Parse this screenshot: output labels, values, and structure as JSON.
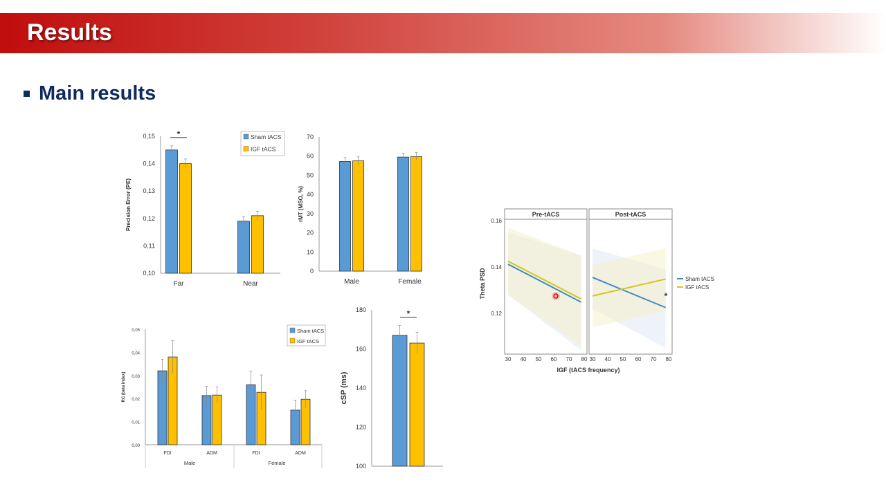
{
  "slide": {
    "title": "Results",
    "subtitle": "Main results"
  },
  "colors": {
    "sham": "#5b9bd5",
    "igf": "#ffc000",
    "sham_line": "#3d8ac4",
    "igf_line": "#d4c41a"
  },
  "chart_data": [
    {
      "type": "bar",
      "id": "pe",
      "ylabel": "Precision Error (PE)",
      "categories": [
        "Far",
        "Near"
      ],
      "ylim": [
        0.1,
        0.15
      ],
      "yticks": [
        "0,10",
        "0,11",
        "0,12",
        "0,13",
        "0,14",
        "0,15"
      ],
      "series": [
        {
          "name": "Sham tACS",
          "values": [
            0.145,
            0.119
          ],
          "errors": [
            0.0015,
            0.0017
          ]
        },
        {
          "name": "IGF tACS",
          "values": [
            0.14,
            0.121
          ],
          "errors": [
            0.0017,
            0.0016
          ]
        }
      ],
      "legend": "top-right",
      "annotations": [
        {
          "text": "*",
          "category": "Far"
        }
      ]
    },
    {
      "type": "bar",
      "id": "rmt",
      "ylabel": "rMT (MSO, %)",
      "categories": [
        "Male",
        "Female"
      ],
      "ylim": [
        0,
        70
      ],
      "yticks": [
        "0",
        "10",
        "20",
        "30",
        "40",
        "50",
        "60",
        "70"
      ],
      "series": [
        {
          "name": "Sham tACS",
          "values": [
            57.2,
            59.5
          ],
          "errors": [
            2,
            2
          ]
        },
        {
          "name": "IGF tACS",
          "values": [
            57.6,
            59.8
          ],
          "errors": [
            2,
            2
          ]
        }
      ]
    },
    {
      "type": "bar",
      "id": "rc",
      "ylabel": "RC (beta index)",
      "categories": [
        "FDI",
        "ADM",
        "FDI",
        "ADM"
      ],
      "groups": [
        "Male",
        "Female"
      ],
      "ylim": [
        0,
        0.05
      ],
      "yticks": [
        "0,00",
        "0,01",
        "0,02",
        "0,03",
        "0,04",
        "0,05"
      ],
      "series": [
        {
          "name": "Sham tACS",
          "values": [
            0.032,
            0.0213,
            0.026,
            0.015
          ],
          "errors": [
            0.005,
            0.004,
            0.0058,
            0.0043
          ]
        },
        {
          "name": "IGF tACS",
          "values": [
            0.038,
            0.0215,
            0.0227,
            0.0197
          ],
          "errors": [
            0.007,
            0.0035,
            0.0075,
            0.0037
          ]
        }
      ],
      "legend": "top-right"
    },
    {
      "type": "bar",
      "id": "csp",
      "ylabel": "cSP (ms)",
      "categories": [
        ""
      ],
      "ylim": [
        100,
        180
      ],
      "yticks": [
        "100",
        "120",
        "140",
        "160",
        "180"
      ],
      "series": [
        {
          "name": "Sham tACS",
          "values": [
            167
          ],
          "errors": [
            5
          ]
        },
        {
          "name": "IGF tACS",
          "values": [
            163
          ],
          "errors": [
            5.5
          ]
        }
      ],
      "annotations": [
        {
          "text": "*",
          "category": ""
        }
      ]
    },
    {
      "type": "line",
      "id": "psd",
      "xlabel": "IGF (tACS frequency)",
      "ylabel": "Theta PSD",
      "panels": [
        "Pre-tACS",
        "Post-tACS"
      ],
      "xlim": [
        30,
        80
      ],
      "xticks": [
        "30",
        "40",
        "50",
        "60",
        "70",
        "80"
      ],
      "ylim": [
        0.1,
        0.16
      ],
      "yticks": [
        "0.12",
        "0.14",
        "0.16"
      ],
      "legend": "right",
      "series": [
        {
          "name": "Sham tACS",
          "panel": "Pre-tACS",
          "x": [
            30,
            78
          ],
          "y": [
            0.1412,
            0.1248
          ],
          "ci_low": [
            0.128,
            0.104
          ],
          "ci_high": [
            0.155,
            0.145
          ]
        },
        {
          "name": "IGF tACS",
          "panel": "Pre-tACS",
          "x": [
            30,
            78
          ],
          "y": [
            0.1425,
            0.1262
          ],
          "ci_low": [
            0.128,
            0.106
          ],
          "ci_high": [
            0.157,
            0.145
          ]
        },
        {
          "name": "Sham tACS",
          "panel": "Post-tACS",
          "x": [
            30,
            78
          ],
          "y": [
            0.1355,
            0.1225
          ],
          "ci_low": [
            0.122,
            0.105
          ],
          "ci_high": [
            0.148,
            0.139
          ]
        },
        {
          "name": "IGF tACS",
          "panel": "Post-tACS",
          "x": [
            30,
            78
          ],
          "y": [
            0.1275,
            0.1348
          ],
          "ci_low": [
            0.114,
            0.121
          ],
          "ci_high": [
            0.141,
            0.148
          ]
        }
      ],
      "annotations": [
        {
          "text": "*",
          "panel": "Post-tACS"
        }
      ]
    }
  ]
}
